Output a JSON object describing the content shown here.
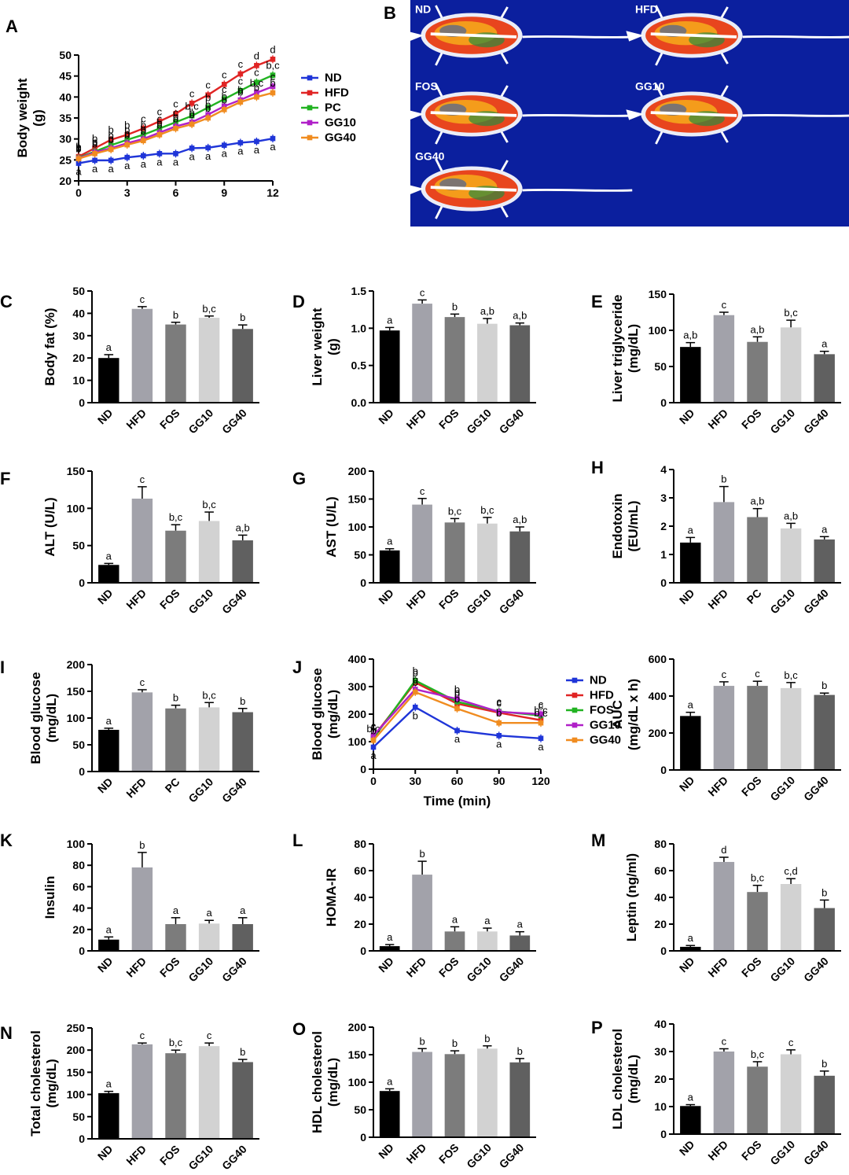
{
  "panel_B": {
    "label": "B",
    "background": "#0b1f9e",
    "images": [
      {
        "label": "ND"
      },
      {
        "label": "HFD"
      },
      {
        "label": "FOS"
      },
      {
        "label": "GG10"
      },
      {
        "label": "GG40"
      }
    ]
  },
  "chart_data": [
    {
      "panel": "A",
      "type": "line",
      "ylabel": "Body weight  (g)",
      "xlabel": "",
      "x": [
        0,
        1,
        2,
        3,
        4,
        5,
        6,
        7,
        8,
        9,
        10,
        11,
        12
      ],
      "xticks": [
        0,
        3,
        6,
        9,
        12
      ],
      "yticks": [
        20,
        25,
        30,
        35,
        40,
        45,
        50
      ],
      "ylim": [
        20,
        50
      ],
      "xlim": [
        0,
        12
      ],
      "legend_position": "right",
      "series": [
        {
          "name": "ND",
          "color": "#1f35d8",
          "values": [
            24.2,
            24.9,
            24.9,
            25.6,
            26.0,
            26.5,
            26.5,
            27.8,
            27.9,
            28.5,
            29.1,
            29.4,
            30.1
          ]
        },
        {
          "name": "HFD",
          "color": "#e02424",
          "values": [
            25.8,
            27.8,
            29.8,
            31.0,
            32.5,
            34.2,
            36.0,
            38.5,
            40.5,
            43.0,
            45.5,
            47.5,
            49.0
          ]
        },
        {
          "name": "PC",
          "color": "#22b322",
          "values": [
            25.5,
            27.0,
            28.5,
            29.8,
            31.0,
            32.5,
            34.0,
            35.5,
            37.5,
            39.5,
            41.5,
            43.5,
            45.2
          ]
        },
        {
          "name": "GG10",
          "color": "#b020c8",
          "values": [
            25.4,
            26.8,
            27.8,
            29.0,
            30.0,
            31.5,
            33.0,
            34.0,
            35.8,
            37.8,
            39.3,
            41.0,
            42.5
          ]
        },
        {
          "name": "GG40",
          "color": "#f08c20",
          "values": [
            25.3,
            26.5,
            27.5,
            28.6,
            29.6,
            31.0,
            32.5,
            33.5,
            35.0,
            37.0,
            38.8,
            40.0,
            41.0
          ]
        }
      ],
      "letters": {
        "ND": [
          "a",
          "a",
          "a",
          "a",
          "a",
          "a",
          "a",
          "a",
          "a",
          "a",
          "a",
          "a",
          "a"
        ],
        "HFD": [
          "b",
          "b",
          "b",
          "b",
          "c",
          "c",
          "c",
          "c",
          "c",
          "c",
          "c",
          "d",
          "d"
        ],
        "PC": [
          "b",
          "b",
          "b",
          "b",
          "b",
          "c",
          "c",
          "b,c",
          "b",
          "c",
          "c",
          "c",
          "b,c"
        ],
        "GG10": [
          "b",
          "b",
          "b",
          "b",
          "b",
          "b",
          "b",
          "b",
          "b",
          "b",
          "b",
          "b,c",
          "c"
        ],
        "GG40": [
          "b",
          "b",
          "b",
          "b",
          "b",
          "b",
          "b",
          "b",
          "b",
          "b",
          "b",
          "b",
          "b"
        ]
      }
    },
    {
      "panel": "C",
      "type": "bar",
      "ylabel": "Body fat (%)",
      "categories": [
        "ND",
        "HFD",
        "FOS",
        "GG10",
        "GG40"
      ],
      "values": [
        20,
        42,
        35,
        38,
        33
      ],
      "errors": [
        1.5,
        1,
        1,
        0.8,
        1.8
      ],
      "sig": [
        "a",
        "c",
        "b",
        "b,c",
        "b"
      ],
      "ylim": [
        0,
        50
      ],
      "yticks": [
        0,
        10,
        20,
        30,
        40,
        50
      ]
    },
    {
      "panel": "D",
      "type": "bar",
      "ylabel": "Liver weight  (g)",
      "categories": [
        "ND",
        "HFD",
        "FOS",
        "GG10",
        "GG40"
      ],
      "values": [
        0.97,
        1.33,
        1.15,
        1.06,
        1.04
      ],
      "errors": [
        0.04,
        0.05,
        0.04,
        0.07,
        0.03
      ],
      "sig": [
        "a",
        "c",
        "b",
        "a,b",
        "a,b"
      ],
      "ylim": [
        0,
        1.5
      ],
      "yticks": [
        "0.0",
        "0.5",
        "1.0",
        "1.5"
      ]
    },
    {
      "panel": "E",
      "type": "bar",
      "ylabel": "Liver triglyceride (mg/dL)",
      "categories": [
        "ND",
        "HFD",
        "FOS",
        "GG10",
        "GG40"
      ],
      "values": [
        77,
        121,
        84,
        104,
        67
      ],
      "errors": [
        6,
        4,
        7,
        10,
        4
      ],
      "sig": [
        "a,b",
        "c",
        "a,b",
        "b,c",
        "a"
      ],
      "ylim": [
        0,
        150
      ],
      "yticks": [
        0,
        50,
        100,
        150
      ]
    },
    {
      "panel": "F",
      "type": "bar",
      "ylabel": "ALT (U/L)",
      "categories": [
        "ND",
        "HFD",
        "FOS",
        "GG10",
        "GG40"
      ],
      "values": [
        24,
        113,
        70,
        83,
        57
      ],
      "errors": [
        2,
        16,
        8,
        12,
        7
      ],
      "sig": [
        "a",
        "c",
        "b,c",
        "b,c",
        "a,b"
      ],
      "ylim": [
        0,
        150
      ],
      "yticks": [
        0,
        50,
        100,
        150
      ]
    },
    {
      "panel": "G",
      "type": "bar",
      "ylabel": "AST (U/L)",
      "categories": [
        "ND",
        "HFD",
        "FOS",
        "GG10",
        "GG40"
      ],
      "values": [
        58,
        140,
        108,
        106,
        92
      ],
      "errors": [
        3,
        11,
        7,
        11,
        8
      ],
      "sig": [
        "a",
        "c",
        "b,c",
        "b,c",
        "a,b"
      ],
      "ylim": [
        0,
        200
      ],
      "yticks": [
        0,
        50,
        100,
        150,
        200
      ]
    },
    {
      "panel": "H",
      "type": "bar",
      "ylabel": "Endotoxin (EU/mL)",
      "categories": [
        "ND",
        "HFD",
        "PC",
        "GG10",
        "GG40"
      ],
      "values": [
        1.42,
        2.85,
        2.32,
        1.92,
        1.53
      ],
      "errors": [
        0.18,
        0.55,
        0.3,
        0.18,
        0.1
      ],
      "sig": [
        "a",
        "b",
        "a,b",
        "a,b",
        "a"
      ],
      "ylim": [
        0,
        4
      ],
      "yticks": [
        0,
        1,
        2,
        3,
        4
      ]
    },
    {
      "panel": "I",
      "type": "bar",
      "ylabel": "Blood glucose (mg/dL)",
      "categories": [
        "ND",
        "HFD",
        "PC",
        "GG10",
        "GG40"
      ],
      "values": [
        78,
        148,
        118,
        120,
        111
      ],
      "errors": [
        3,
        5,
        6,
        9,
        7
      ],
      "sig": [
        "a",
        "c",
        "b",
        "b,c",
        "b"
      ],
      "ylim": [
        0,
        200
      ],
      "yticks": [
        0,
        50,
        100,
        150,
        200
      ]
    },
    {
      "panel": "J",
      "type": "line",
      "ylabel": "Blood glucose (mg/dL)",
      "xlabel": "Time (min)",
      "x": [
        0,
        30,
        60,
        90,
        120
      ],
      "xticks": [
        0,
        30,
        60,
        90,
        120
      ],
      "yticks": [
        0,
        100,
        200,
        300,
        400
      ],
      "ylim": [
        0,
        400
      ],
      "xlim": [
        0,
        120
      ],
      "legend_position": "right",
      "series": [
        {
          "name": "ND",
          "color": "#1f35d8",
          "values": [
            80,
            225,
            140,
            122,
            112
          ],
          "sig": [
            "a",
            "b",
            "a",
            "a",
            "a"
          ]
        },
        {
          "name": "HFD",
          "color": "#e02424",
          "values": [
            118,
            315,
            238,
            205,
            178
          ],
          "sig": [
            "c",
            "b",
            "b",
            "c",
            "b,c"
          ]
        },
        {
          "name": "FOS",
          "color": "#22b322",
          "values": [
            112,
            322,
            245,
            210,
            195
          ],
          "sig": [
            "b,c",
            "b",
            "b",
            "c",
            "c"
          ]
        },
        {
          "name": "GG10",
          "color": "#b020c8",
          "values": [
            122,
            290,
            255,
            208,
            200
          ],
          "sig": [
            "c",
            "b",
            "b",
            "c",
            "c"
          ]
        },
        {
          "name": "GG40",
          "color": "#f08c20",
          "values": [
            105,
            280,
            220,
            168,
            168
          ],
          "sig": [
            "b",
            "b",
            "b",
            "b",
            "b,c"
          ]
        }
      ]
    },
    {
      "panel": "J-AUC",
      "type": "bar",
      "ylabel": "AUC (mg/dL x h)",
      "categories": [
        "ND",
        "HFD",
        "FOS",
        "GG10",
        "GG40"
      ],
      "values": [
        292,
        455,
        455,
        443,
        406
      ],
      "errors": [
        20,
        22,
        25,
        30,
        10
      ],
      "sig": [
        "a",
        "c",
        "c",
        "b,c",
        "b"
      ],
      "ylim": [
        0,
        600
      ],
      "yticks": [
        0,
        200,
        400,
        600
      ]
    },
    {
      "panel": "K",
      "type": "bar",
      "ylabel": "Insulin",
      "categories": [
        "ND",
        "HFD",
        "FOS",
        "GG10",
        "GG40"
      ],
      "values": [
        10.5,
        78,
        25,
        25.5,
        25
      ],
      "errors": [
        2.5,
        14,
        6,
        3,
        6
      ],
      "sig": [
        "a",
        "b",
        "a",
        "a",
        "a"
      ],
      "ylim": [
        0,
        100
      ],
      "yticks": [
        0,
        20,
        40,
        60,
        80,
        100
      ]
    },
    {
      "panel": "L",
      "type": "bar",
      "ylabel": "HOMA-IR",
      "categories": [
        "ND",
        "HFD",
        "FOS",
        "GG10",
        "GG40"
      ],
      "values": [
        3.5,
        57,
        14.5,
        14.5,
        11.5
      ],
      "errors": [
        1.2,
        10,
        3.5,
        2.5,
        2.8
      ],
      "sig": [
        "a",
        "b",
        "a",
        "a",
        "a"
      ],
      "ylim": [
        0,
        80
      ],
      "yticks": [
        0,
        20,
        40,
        60,
        80
      ]
    },
    {
      "panel": "M",
      "type": "bar",
      "ylabel": "Leptin (ng/ml)",
      "categories": [
        "ND",
        "HFD",
        "FOS",
        "GG10",
        "GG40"
      ],
      "values": [
        3,
        66.5,
        44,
        50,
        32
      ],
      "errors": [
        1,
        3.5,
        5,
        4,
        6
      ],
      "sig": [
        "a",
        "d",
        "b,c",
        "c,d",
        "b"
      ],
      "ylim": [
        0,
        80
      ],
      "yticks": [
        0,
        20,
        40,
        60,
        80
      ]
    },
    {
      "panel": "N",
      "type": "bar",
      "ylabel": "Total cholesterol (mg/dL)",
      "categories": [
        "ND",
        "HFD",
        "FOS",
        "GG10",
        "GG40"
      ],
      "values": [
        103,
        213,
        193,
        209,
        173
      ],
      "errors": [
        4,
        3,
        7,
        7,
        6
      ],
      "sig": [
        "a",
        "c",
        "b,c",
        "c",
        "b"
      ],
      "ylim": [
        0,
        250
      ],
      "yticks": [
        0,
        50,
        100,
        150,
        200,
        250
      ]
    },
    {
      "panel": "O",
      "type": "bar",
      "ylabel": "HDL  cholesterol (mg/dL)",
      "categories": [
        "ND",
        "HFD",
        "FOS",
        "GG10",
        "GG40"
      ],
      "values": [
        84,
        155,
        151,
        161,
        136
      ],
      "errors": [
        4,
        6,
        6,
        5,
        7
      ],
      "sig": [
        "a",
        "b",
        "b",
        "b",
        "b"
      ],
      "ylim": [
        0,
        200
      ],
      "yticks": [
        0,
        50,
        100,
        150,
        200
      ]
    },
    {
      "panel": "P",
      "type": "bar",
      "ylabel": "LDL cholesterol (mg/dL)",
      "categories": [
        "ND",
        "HFD",
        "FOS",
        "GG10",
        "GG40"
      ],
      "values": [
        10.2,
        30,
        24.5,
        29,
        21.2
      ],
      "errors": [
        0.5,
        1,
        1.8,
        1.6,
        1.7
      ],
      "sig": [
        "a",
        "c",
        "b,c",
        "c",
        "b"
      ],
      "ylim": [
        0,
        40
      ],
      "yticks": [
        0,
        10,
        20,
        30,
        40
      ]
    }
  ]
}
